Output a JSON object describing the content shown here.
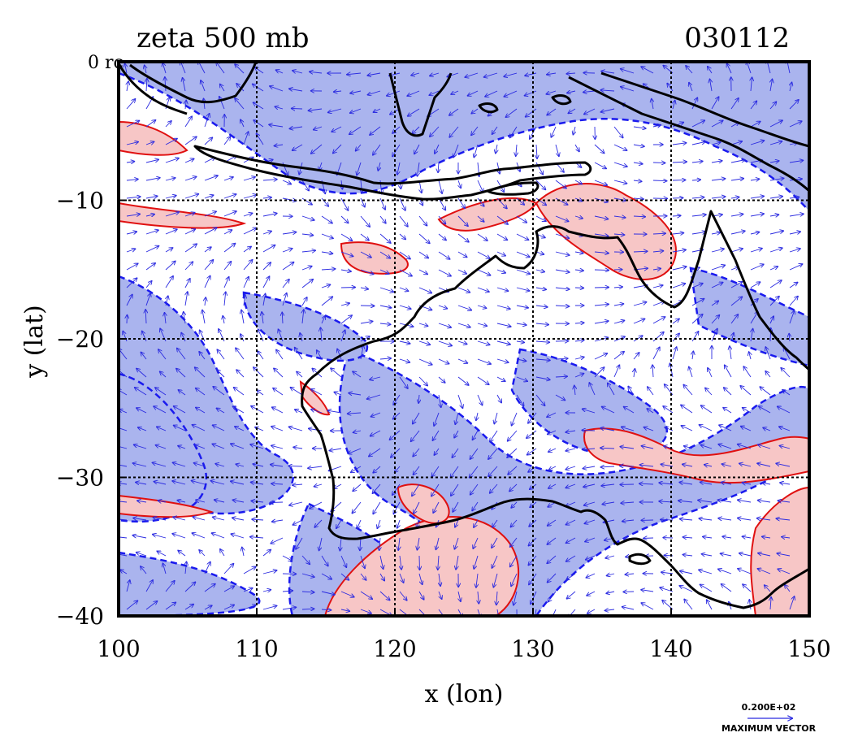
{
  "title_left": "zeta 500 mb",
  "title_right": "030112",
  "xlabel": "x (lon)",
  "ylabel": "y (lat)",
  "corner_label": "0 rc",
  "map": {
    "lon_range": [
      100,
      150
    ],
    "lat_range": [
      -40,
      0
    ],
    "x_ticks": [
      {
        "value": 100,
        "label": "100"
      },
      {
        "value": 110,
        "label": "110"
      },
      {
        "value": 120,
        "label": "120"
      },
      {
        "value": 130,
        "label": "130"
      },
      {
        "value": 140,
        "label": "140"
      },
      {
        "value": 150,
        "label": "150"
      }
    ],
    "y_ticks": [
      {
        "value": -10,
        "label": "−10"
      },
      {
        "value": -20,
        "label": "−20"
      },
      {
        "value": -30,
        "label": "−30"
      },
      {
        "value": -40,
        "label": "−40"
      }
    ],
    "grid_lon": [
      110,
      120,
      130,
      140
    ],
    "grid_lat": [
      -10,
      -20,
      -30
    ],
    "colors": {
      "positive_fill": "#f7c6c6",
      "positive_line": "#e01010",
      "negative_fill": "#aab4ee",
      "negative_line": "#1a1aee",
      "coast": "#000000",
      "vector": "#2a2ae0"
    }
  },
  "legend": {
    "value_label": "0.200E+02",
    "caption": "MAXIMUM VECTOR"
  }
}
